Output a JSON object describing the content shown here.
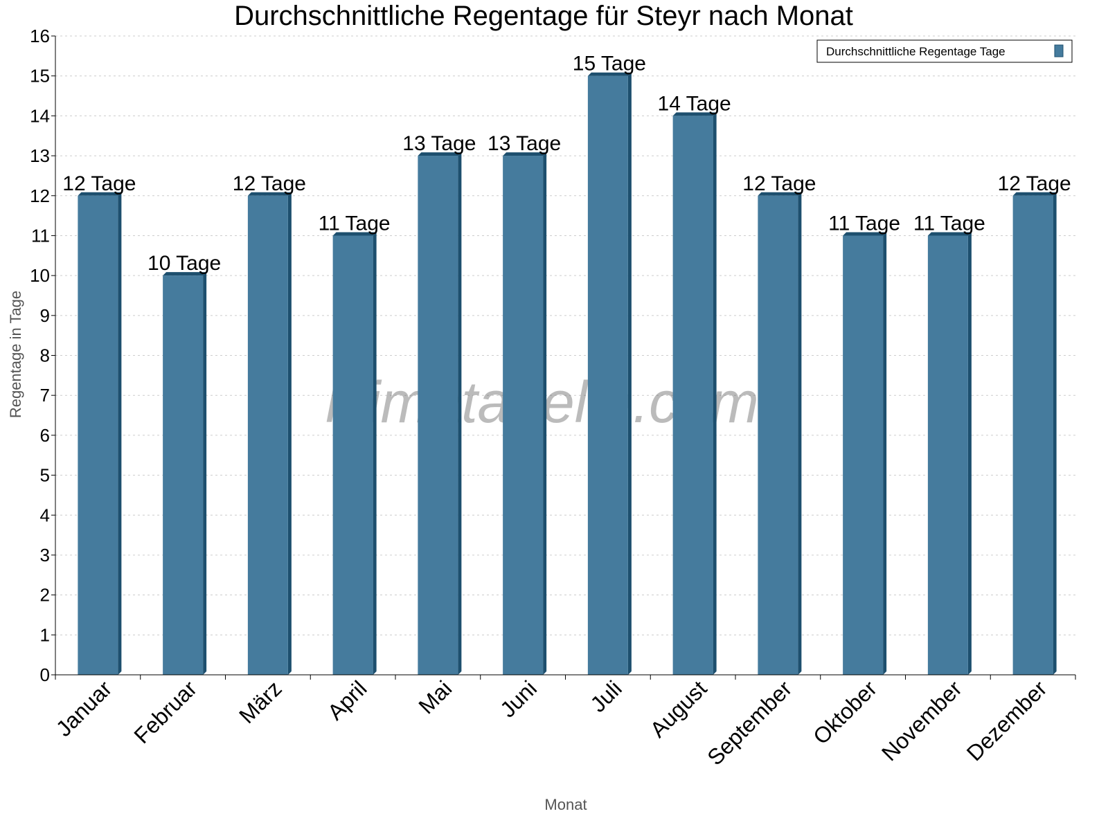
{
  "chart_data": {
    "type": "bar",
    "title": "Durchschnittliche Regentage für Steyr nach Monat",
    "xlabel": "Monat",
    "ylabel": "Regentage in Tage",
    "categories": [
      "Januar",
      "Februar",
      "März",
      "April",
      "Mai",
      "Juni",
      "Juli",
      "August",
      "September",
      "Oktober",
      "November",
      "Dezember"
    ],
    "series": [
      {
        "name": "Durchschnittliche Regentage Tage",
        "values": [
          12,
          10,
          12,
          11,
          13,
          13,
          15,
          14,
          12,
          11,
          11,
          12
        ]
      }
    ],
    "data_label_suffix": " Tage",
    "ylim": [
      0,
      16
    ],
    "yticks": [
      0,
      1,
      2,
      3,
      4,
      5,
      6,
      7,
      8,
      9,
      10,
      11,
      12,
      13,
      14,
      15,
      16
    ],
    "grid": true,
    "legend": "top-right",
    "colors": {
      "bar": "#457b9d",
      "bar_side": "#1d4f6e",
      "grid": "#cccccc"
    },
    "watermark": "klimatabelle.com"
  }
}
